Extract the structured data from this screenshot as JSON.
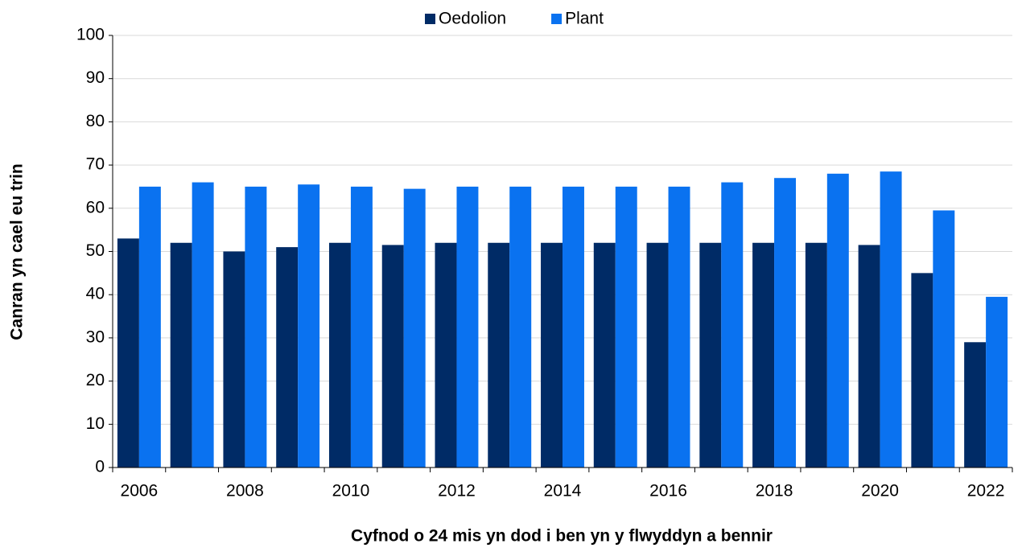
{
  "chart_data": {
    "type": "bar",
    "x_label": "Cyfnod o 24 mis yn dod i ben yn y flwyddyn a bennir",
    "y_label": "Canran yn cael eu trin",
    "categories": [
      "2006",
      null,
      "2008",
      null,
      "2010",
      null,
      "2012",
      null,
      "2014",
      null,
      "2016",
      null,
      "2018",
      null,
      "2020",
      null,
      "2022"
    ],
    "series": [
      {
        "name": "Oedolion",
        "color": "#002b66",
        "values": [
          53,
          52,
          50,
          51,
          52,
          51.5,
          52,
          52,
          52,
          52,
          52,
          52,
          52,
          52,
          51.5,
          45,
          29
        ]
      },
      {
        "name": "Plant",
        "color": "#0a72f0",
        "values": [
          65,
          66,
          65,
          65.5,
          65,
          64.5,
          65,
          65,
          65,
          65,
          65,
          66,
          67,
          68,
          68.5,
          59.5,
          39.5
        ]
      }
    ],
    "ylim": [
      0,
      100
    ],
    "yticks": [
      0,
      10,
      20,
      30,
      40,
      50,
      60,
      70,
      80,
      90,
      100
    ],
    "grid": true,
    "legend": "top"
  }
}
